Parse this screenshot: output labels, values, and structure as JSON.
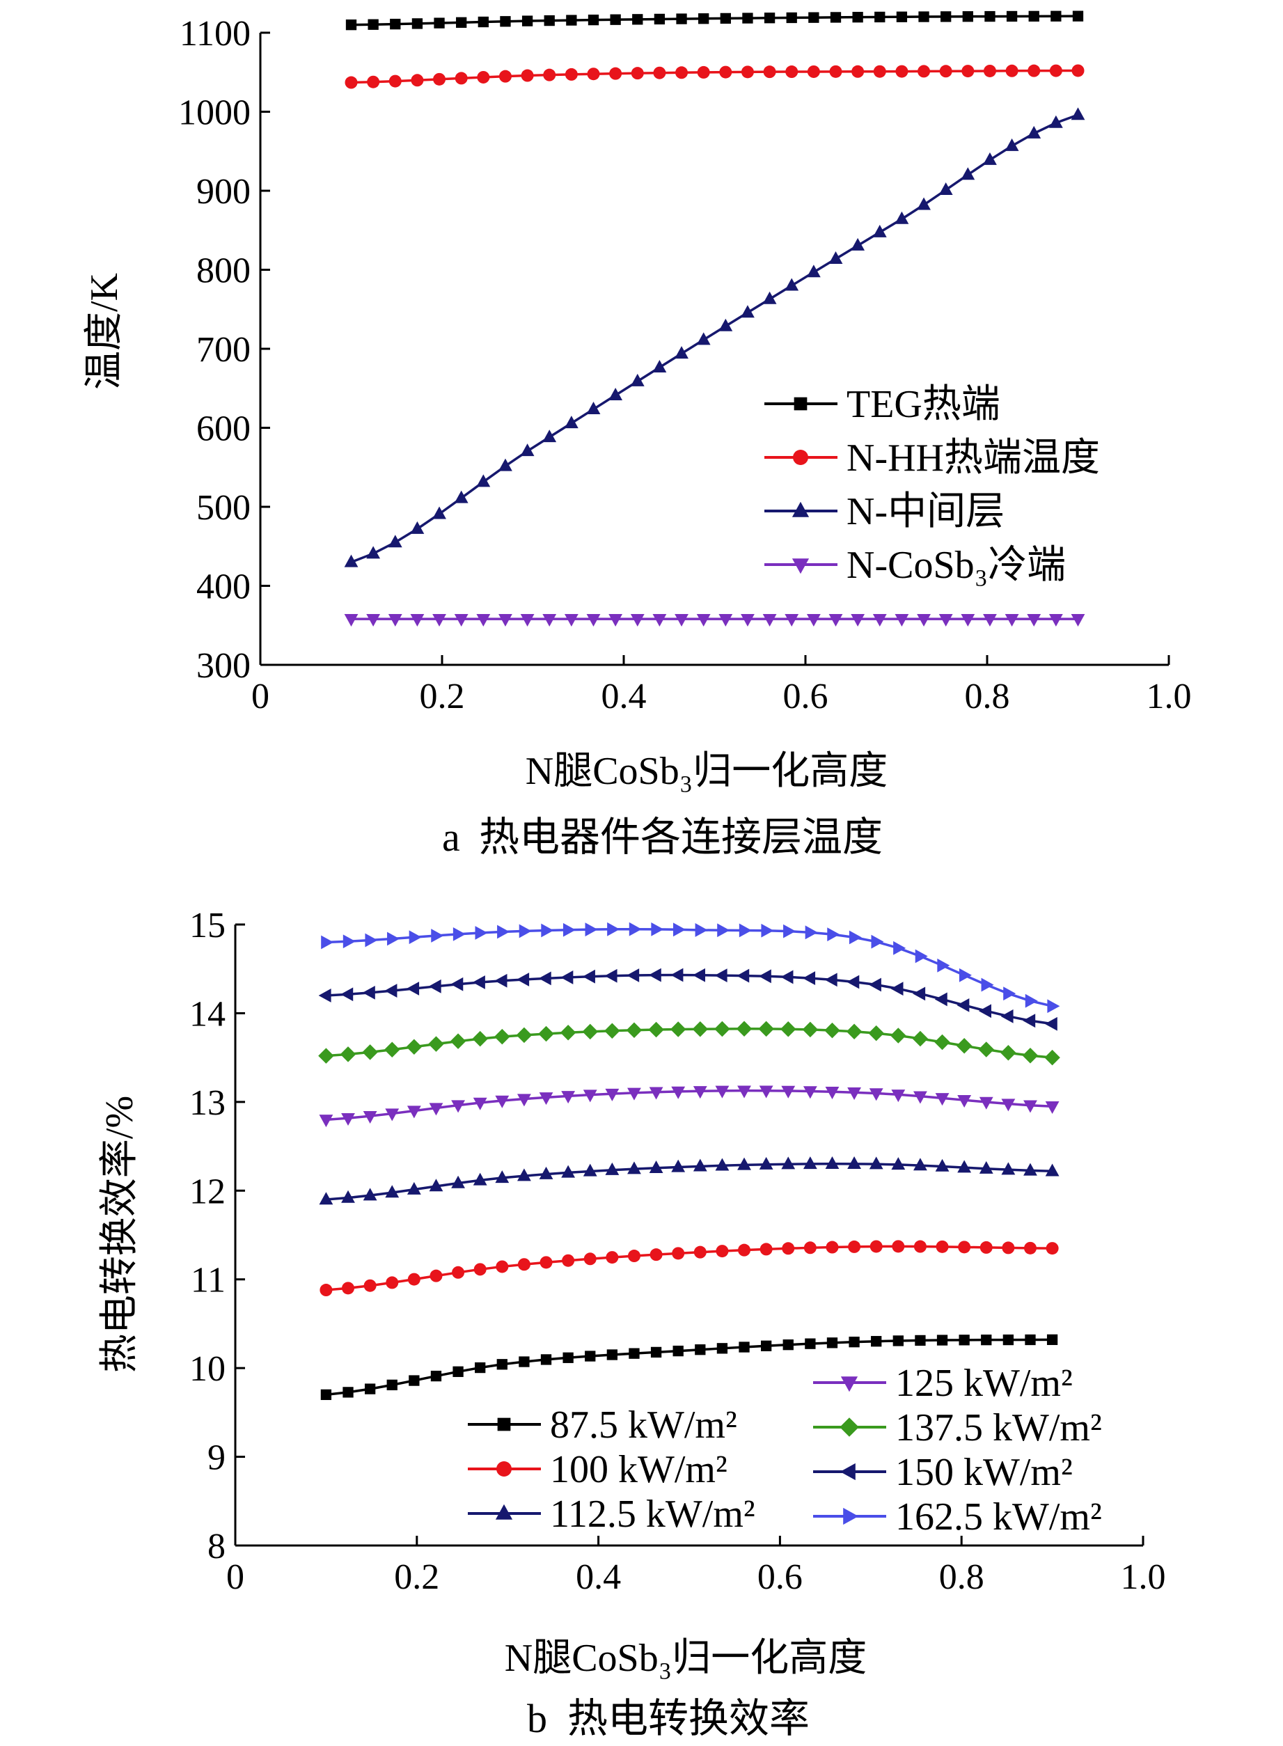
{
  "chart_data": [
    {
      "type": "line",
      "caption_letter": "a",
      "caption_text": "热电器件各连接层温度",
      "xlabel": "N腿CoSb₃归一化高度",
      "ylabel": "温度/K",
      "xlim": [
        0,
        1.0
      ],
      "ylim": [
        300,
        1100
      ],
      "xticks": [
        "0",
        "0.2",
        "0.4",
        "0.6",
        "0.8",
        "1.0"
      ],
      "yticks": [
        "300",
        "400",
        "500",
        "600",
        "700",
        "800",
        "900",
        "1000",
        "1100"
      ],
      "grid": false,
      "legend_position": "right",
      "series": [
        {
          "name": "TEG热端",
          "color": "#000000",
          "marker": "square",
          "x": [
            0.1,
            0.3,
            0.5,
            0.7,
            0.9
          ],
          "y": [
            1110,
            1115,
            1118,
            1120,
            1121
          ]
        },
        {
          "name": "N-HH热端温度",
          "color": "#e8141b",
          "marker": "circle",
          "x": [
            0.1,
            0.3,
            0.5,
            0.7,
            0.9
          ],
          "y": [
            1037,
            1046,
            1050,
            1051,
            1052
          ]
        },
        {
          "name": "N-中间层",
          "color": "#16186e",
          "marker": "triangle-up",
          "x": [
            0.1,
            0.3,
            0.5,
            0.7,
            0.9
          ],
          "y": [
            430,
            575,
            720,
            860,
            996
          ]
        },
        {
          "name": "N-CoSb₃冷端",
          "color": "#7a2fbe",
          "marker": "triangle-down",
          "x": [
            0.1,
            0.3,
            0.5,
            0.7,
            0.9
          ],
          "y": [
            358,
            358,
            358,
            358,
            358
          ]
        }
      ]
    },
    {
      "type": "line",
      "caption_letter": "b",
      "caption_text": "热电转换效率",
      "xlabel": "N腿CoSb₃归一化高度",
      "ylabel": "热电转换效率/%",
      "xlim": [
        0,
        1.0
      ],
      "ylim": [
        8,
        15
      ],
      "xticks": [
        "0",
        "0.2",
        "0.4",
        "0.6",
        "0.8",
        "1.0"
      ],
      "yticks": [
        "8",
        "9",
        "10",
        "11",
        "12",
        "13",
        "14",
        "15"
      ],
      "grid": false,
      "legend_position": "bottom",
      "series": [
        {
          "name": "87.5 kW/m²",
          "color": "#000000",
          "marker": "square",
          "x": [
            0.1,
            0.3,
            0.5,
            0.7,
            0.9
          ],
          "y": [
            9.7,
            10.05,
            10.2,
            10.3,
            10.32
          ]
        },
        {
          "name": "100 kW/m²",
          "color": "#e8141b",
          "marker": "circle",
          "x": [
            0.1,
            0.3,
            0.5,
            0.7,
            0.9
          ],
          "y": [
            10.88,
            11.15,
            11.3,
            11.37,
            11.35
          ]
        },
        {
          "name": "112.5 kW/m²",
          "color": "#16186e",
          "marker": "triangle-up",
          "x": [
            0.1,
            0.3,
            0.5,
            0.7,
            0.9
          ],
          "y": [
            11.9,
            12.15,
            12.27,
            12.3,
            12.22
          ]
        },
        {
          "name": "125 kW/m²",
          "color": "#7a2fbe",
          "marker": "triangle-down",
          "x": [
            0.1,
            0.3,
            0.5,
            0.7,
            0.9
          ],
          "y": [
            12.8,
            13.02,
            13.12,
            13.1,
            12.95
          ]
        },
        {
          "name": "137.5 kW/m²",
          "color": "#3a9a1e",
          "marker": "diamond",
          "x": [
            0.1,
            0.3,
            0.5,
            0.7,
            0.9
          ],
          "y": [
            13.52,
            13.74,
            13.82,
            13.78,
            13.5
          ]
        },
        {
          "name": "150 kW/m²",
          "color": "#16186e",
          "marker": "triangle-left",
          "x": [
            0.1,
            0.3,
            0.5,
            0.7,
            0.9
          ],
          "y": [
            14.2,
            14.37,
            14.43,
            14.33,
            13.88
          ]
        },
        {
          "name": "162.5 kW/m²",
          "color": "#4a4ee8",
          "marker": "triangle-right",
          "x": [
            0.1,
            0.3,
            0.5,
            0.7,
            0.9
          ],
          "y": [
            14.8,
            14.92,
            14.94,
            14.82,
            14.08
          ]
        }
      ]
    }
  ]
}
